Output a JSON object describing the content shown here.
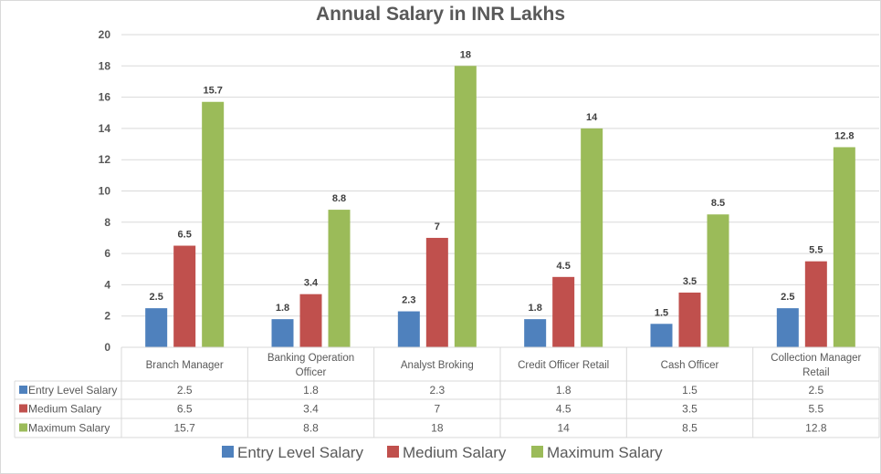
{
  "chart_data": {
    "type": "bar",
    "title": "Annual Salary in INR Lakhs",
    "xlabel": "",
    "ylabel": "",
    "ylim": [
      0,
      20
    ],
    "yticks": [
      "0",
      "2",
      "4",
      "6",
      "8",
      "10",
      "12",
      "14",
      "16",
      "18",
      "20"
    ],
    "grid": true,
    "legend_position": "bottom",
    "data_table": true,
    "categories": [
      [
        "Branch Manager"
      ],
      [
        "Banking Operation",
        "Officer"
      ],
      [
        "Analyst  Broking"
      ],
      [
        "Credit Officer Retail"
      ],
      [
        "Cash Officer"
      ],
      [
        "Collection Manager",
        "Retail"
      ]
    ],
    "series": [
      {
        "name": "Entry Level Salary",
        "color": "#4f81bd",
        "values": [
          2.5,
          1.8,
          2.3,
          1.8,
          1.5,
          2.5
        ],
        "labels": [
          "2.5",
          "1.8",
          "2.3",
          "1.8",
          "1.5",
          "2.5"
        ]
      },
      {
        "name": "Medium Salary",
        "color": "#c0504d",
        "values": [
          6.5,
          3.4,
          7,
          4.5,
          3.5,
          5.5
        ],
        "labels": [
          "6.5",
          "3.4",
          "7",
          "4.5",
          "3.5",
          "5.5"
        ]
      },
      {
        "name": "Maximum Salary",
        "color": "#9bbb59",
        "values": [
          15.7,
          8.8,
          18,
          14,
          8.5,
          12.8
        ],
        "labels": [
          "15.7",
          "8.8",
          "18",
          "14",
          "8.5",
          "12.8"
        ]
      }
    ]
  }
}
